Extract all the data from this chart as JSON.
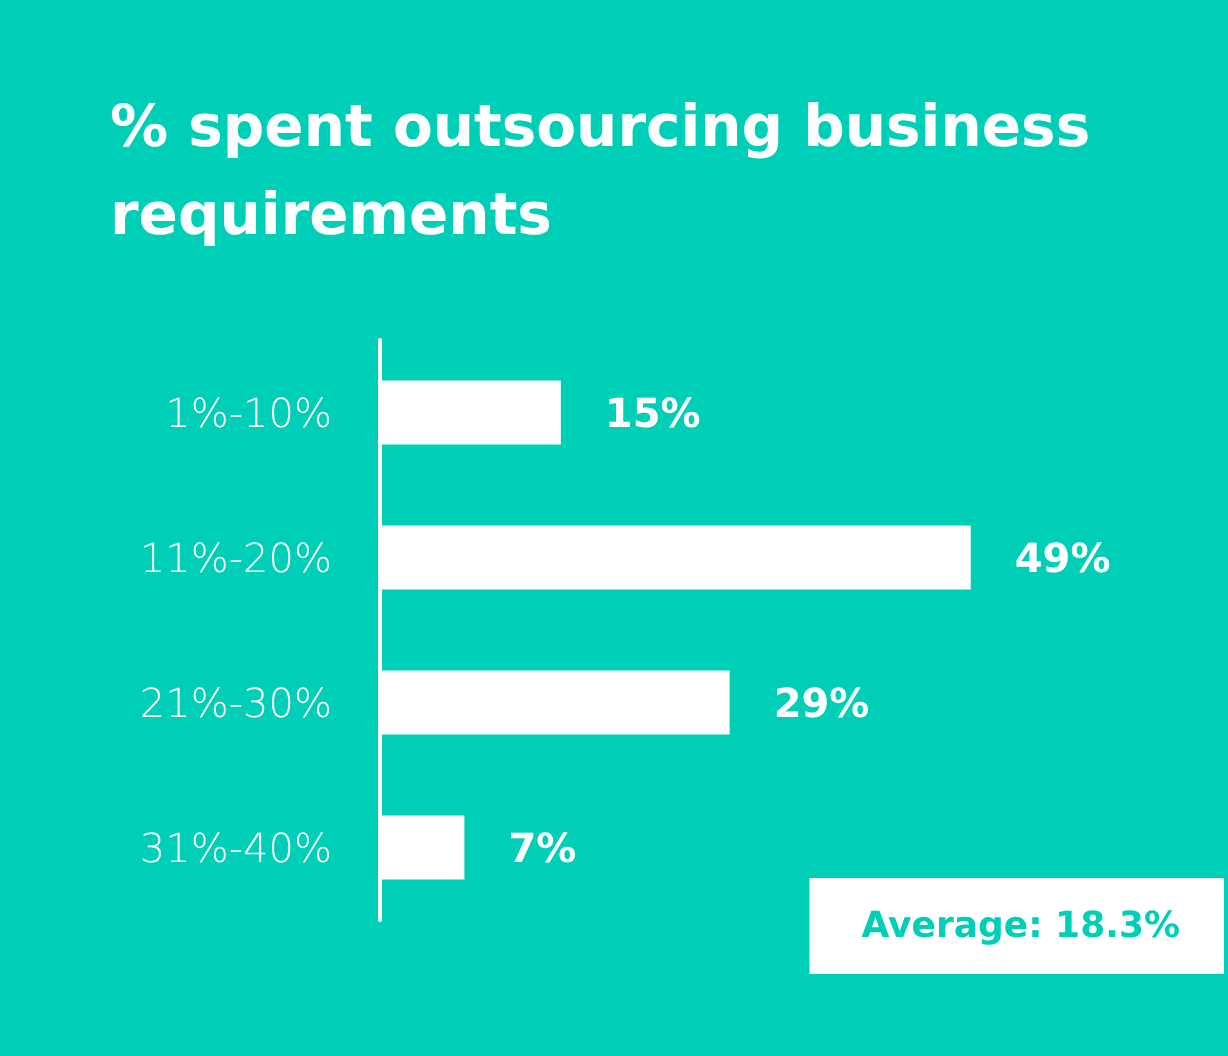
{
  "chart_data": {
    "type": "bar",
    "orientation": "horizontal",
    "title": "% spent outsourcing business requirements",
    "categories": [
      "1%-10%",
      "11%-20%",
      "21%-30%",
      "31%-40%"
    ],
    "values": [
      15,
      49,
      29,
      7
    ],
    "color": "#ffffff",
    "value_labels": [
      "15%",
      "49%",
      "29%",
      "7%"
    ],
    "annotations": [
      "Average: 18.3%"
    ]
  }
}
